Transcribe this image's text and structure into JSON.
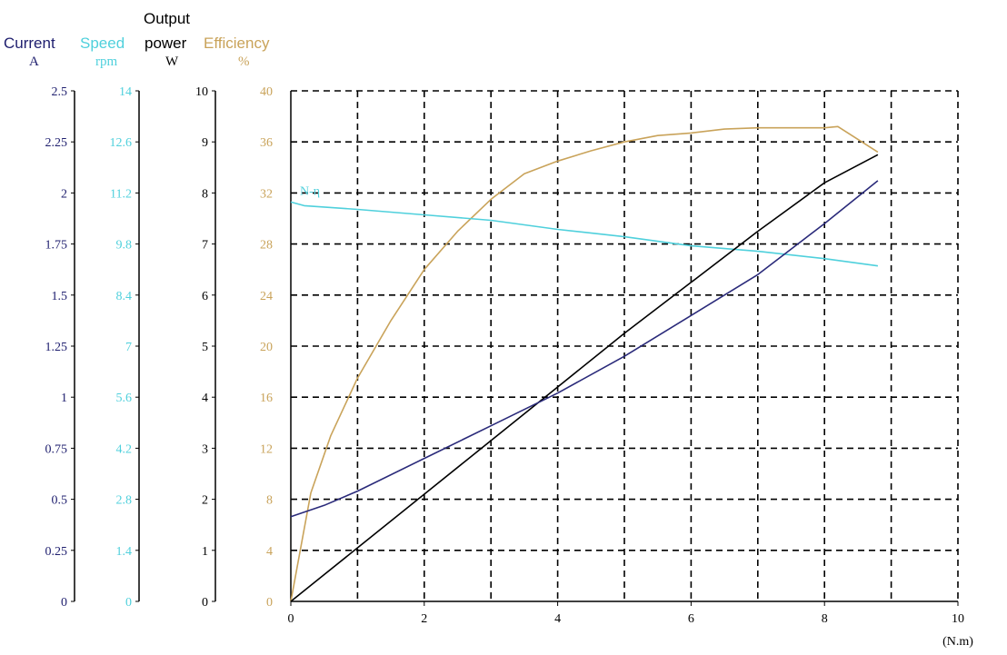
{
  "chart_data": {
    "type": "line",
    "xlabel": "(N.m)",
    "x_ticks": [
      "0",
      "2",
      "4",
      "6",
      "8",
      "10"
    ],
    "xlim": [
      0,
      10
    ],
    "grid": true,
    "axes": {
      "current": {
        "title": "Current",
        "unit": "A",
        "color": "#1e1e6e",
        "ylim": [
          0,
          2.5
        ],
        "ticks": [
          "0",
          "0.25",
          "0.5",
          "0.75",
          "1",
          "1.25",
          "1.5",
          "1.75",
          "2",
          "2.25",
          "2.5"
        ]
      },
      "speed": {
        "title": "Speed",
        "unit": "rpm",
        "color": "#4fd0dc",
        "ylim": [
          0,
          14
        ],
        "ticks": [
          "0",
          "1.4",
          "2.8",
          "4.2",
          "5.6",
          "7",
          "8.4",
          "9.8",
          "11.2",
          "12.6",
          "14"
        ]
      },
      "power": {
        "title_line1": "Output",
        "title_line2": "power",
        "unit": "W",
        "color": "#000000",
        "ylim": [
          0,
          10
        ],
        "ticks": [
          "0",
          "1",
          "2",
          "3",
          "4",
          "5",
          "6",
          "7",
          "8",
          "9",
          "10"
        ]
      },
      "efficiency": {
        "title": "Efficiency",
        "unit": "%",
        "color": "#c9a35a",
        "ylim": [
          0,
          40
        ],
        "ticks": [
          "0",
          "4",
          "8",
          "12",
          "16",
          "20",
          "24",
          "28",
          "32",
          "36",
          "40"
        ]
      }
    },
    "series": [
      {
        "axis": "efficiency",
        "color": "#c9a35a",
        "x": [
          0,
          0.3,
          0.6,
          1.0,
          1.5,
          2.0,
          2.5,
          3.0,
          3.5,
          4.0,
          4.5,
          5.0,
          5.5,
          6.0,
          6.5,
          7.0,
          7.5,
          8.0,
          8.2,
          8.8
        ],
        "y": [
          0,
          8.5,
          13,
          17.5,
          22,
          26,
          29,
          31.5,
          33.5,
          34.5,
          35.3,
          36,
          36.5,
          36.7,
          37,
          37.1,
          37.1,
          37.1,
          37.2,
          35.2
        ]
      },
      {
        "axis": "speed",
        "color": "#4fd0dc",
        "label": "N-η",
        "x": [
          0,
          0.2,
          1.0,
          2.0,
          3.0,
          4.0,
          5.0,
          6.0,
          7.0,
          8.0,
          8.8
        ],
        "y": [
          10.95,
          10.85,
          10.75,
          10.6,
          10.45,
          10.2,
          10.0,
          9.75,
          9.6,
          9.4,
          9.2
        ]
      },
      {
        "axis": "power",
        "color": "#000000",
        "x": [
          0,
          1,
          2,
          3,
          4,
          5,
          6,
          7,
          8,
          8.8
        ],
        "y": [
          0,
          1.05,
          2.1,
          3.15,
          4.2,
          5.25,
          6.25,
          7.25,
          8.2,
          8.75
        ]
      },
      {
        "axis": "current",
        "color": "#2a2a7a",
        "x": [
          0,
          0.5,
          1,
          2,
          3,
          4,
          5,
          6,
          7,
          8,
          8.8
        ],
        "y": [
          0.415,
          0.47,
          0.54,
          0.7,
          0.86,
          1.02,
          1.2,
          1.4,
          1.6,
          1.85,
          2.06
        ]
      }
    ]
  }
}
